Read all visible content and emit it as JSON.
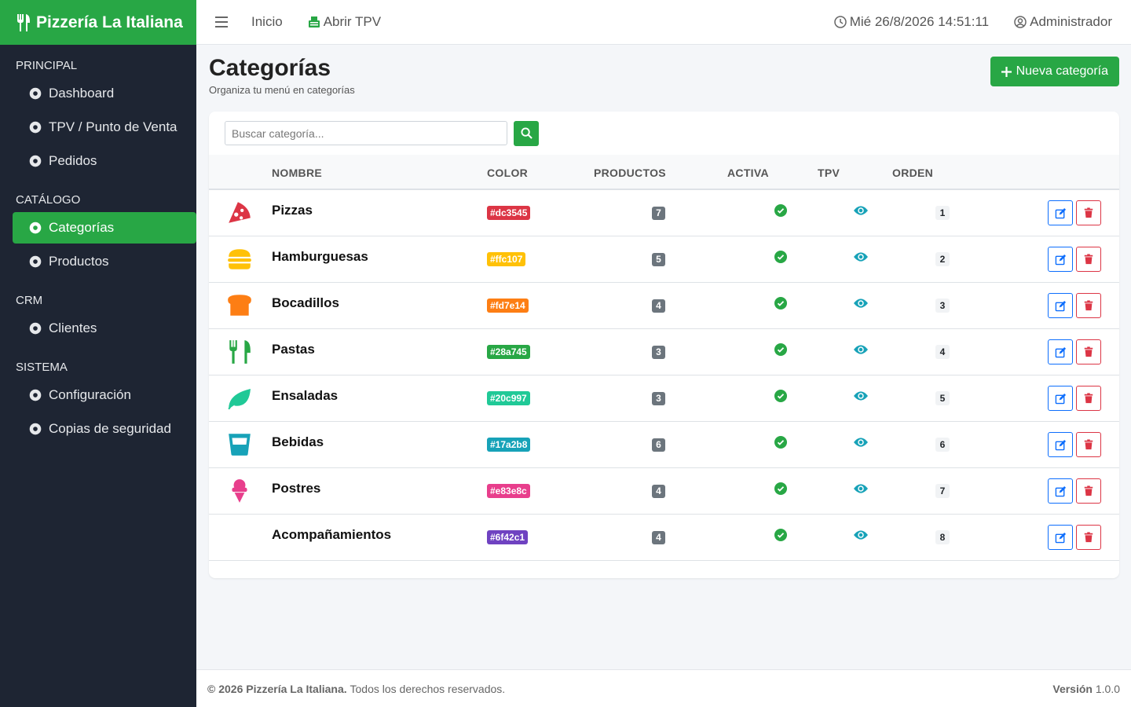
{
  "brand": "Pizzería La Italiana",
  "topbar": {
    "links": [
      "Inicio",
      "Abrir TPV"
    ],
    "datetime": "Mié 26/8/2026 14:51:11",
    "user": "Administrador"
  },
  "sidebar": {
    "sections": [
      {
        "title": "PRINCIPAL",
        "items": [
          "Dashboard",
          "TPV / Punto de Venta",
          "Pedidos"
        ]
      },
      {
        "title": "CATÁLOGO",
        "items": [
          "Categorías",
          "Productos"
        ]
      },
      {
        "title": "CRM",
        "items": [
          "Clientes"
        ]
      },
      {
        "title": "SISTEMA",
        "items": [
          "Configuración",
          "Copias de seguridad"
        ]
      }
    ],
    "active": "Categorías"
  },
  "page": {
    "title": "Categorías",
    "subtitle": "Organiza tu menú en categorías",
    "new_button": "Nueva categoría"
  },
  "search": {
    "placeholder": "Buscar categoría..."
  },
  "table": {
    "headers": [
      "NOMBRE",
      "COLOR",
      "PRODUCTOS",
      "ACTIVA",
      "TPV",
      "ORDEN"
    ],
    "rows": [
      {
        "name": "Pizzas",
        "color": "#dc3545",
        "products": 7,
        "order": 1
      },
      {
        "name": "Hamburguesas",
        "color": "#ffc107",
        "products": 5,
        "order": 2
      },
      {
        "name": "Bocadillos",
        "color": "#fd7e14",
        "products": 4,
        "order": 3
      },
      {
        "name": "Pastas",
        "color": "#28a745",
        "products": 3,
        "order": 4
      },
      {
        "name": "Ensaladas",
        "color": "#20c997",
        "products": 3,
        "order": 5
      },
      {
        "name": "Bebidas",
        "color": "#17a2b8",
        "products": 6,
        "order": 6
      },
      {
        "name": "Postres",
        "color": "#e83e8c",
        "products": 4,
        "order": 7
      },
      {
        "name": "Acompañamientos",
        "color": "#6f42c1",
        "products": 4,
        "order": 8
      }
    ]
  },
  "footer": {
    "copyright": "© 2026 Pizzería La Italiana.",
    "rights": "Todos los derechos reservados.",
    "version_label": "Versión",
    "version": "1.0.0"
  }
}
